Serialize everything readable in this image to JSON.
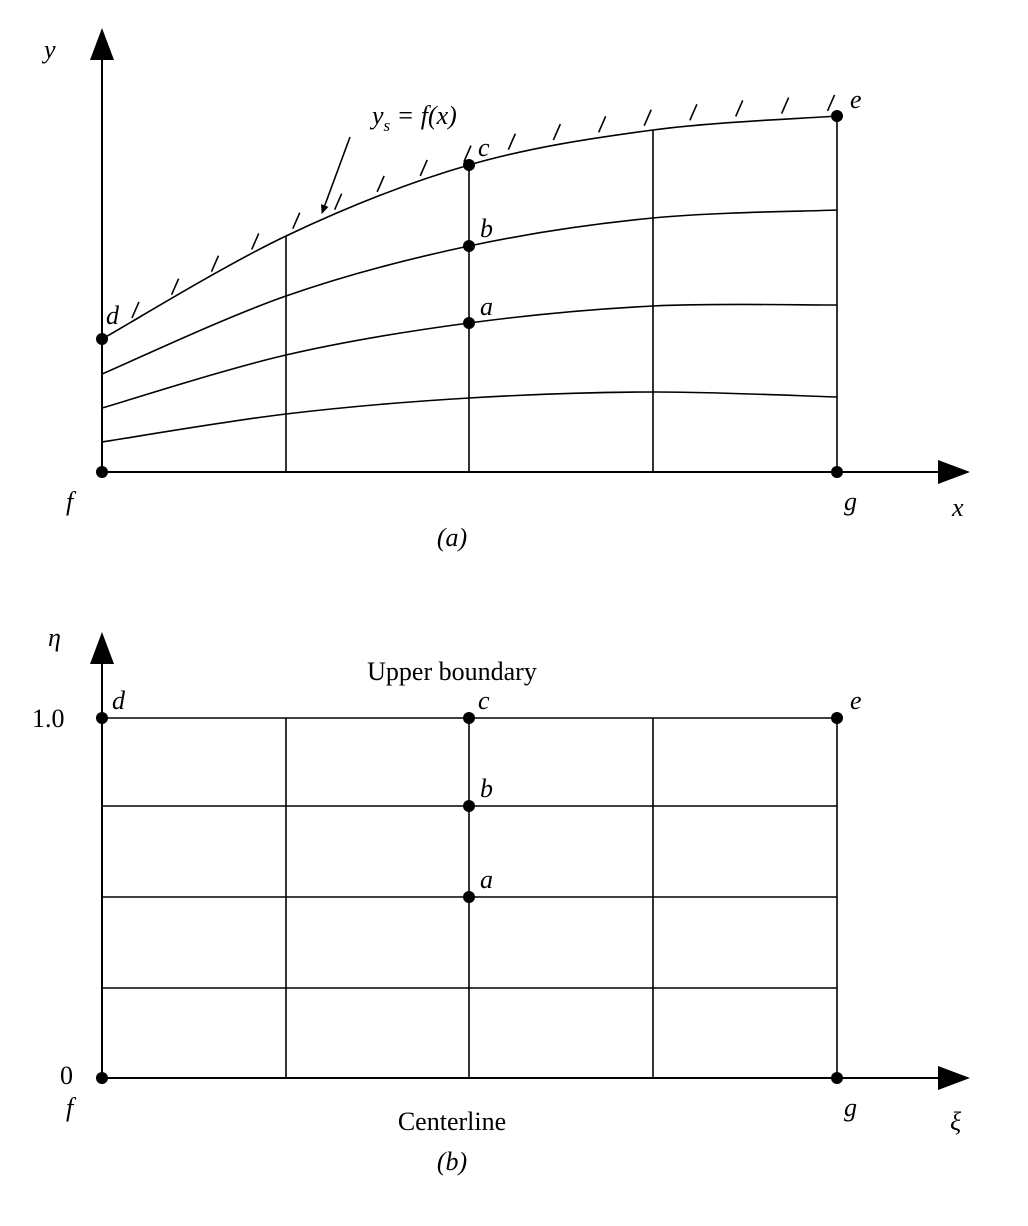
{
  "panel_a": {
    "y_axis": "y",
    "x_axis": "x",
    "curve_label": {
      "base": "y",
      "sub": "s",
      "rest": " = f(x)"
    },
    "points": {
      "a": "a",
      "b": "b",
      "c": "c",
      "d": "d",
      "e": "e",
      "f": "f",
      "g": "g"
    },
    "caption": "(a)"
  },
  "panel_b": {
    "y_axis": "η",
    "x_axis": "ξ",
    "top_tick": "1.0",
    "bottom_tick": "0",
    "upper_label": "Upper boundary",
    "lower_label": "Centerline",
    "points": {
      "a": "a",
      "b": "b",
      "c": "c",
      "d": "d",
      "e": "e",
      "f": "f",
      "g": "g"
    },
    "caption": "(b)"
  }
}
